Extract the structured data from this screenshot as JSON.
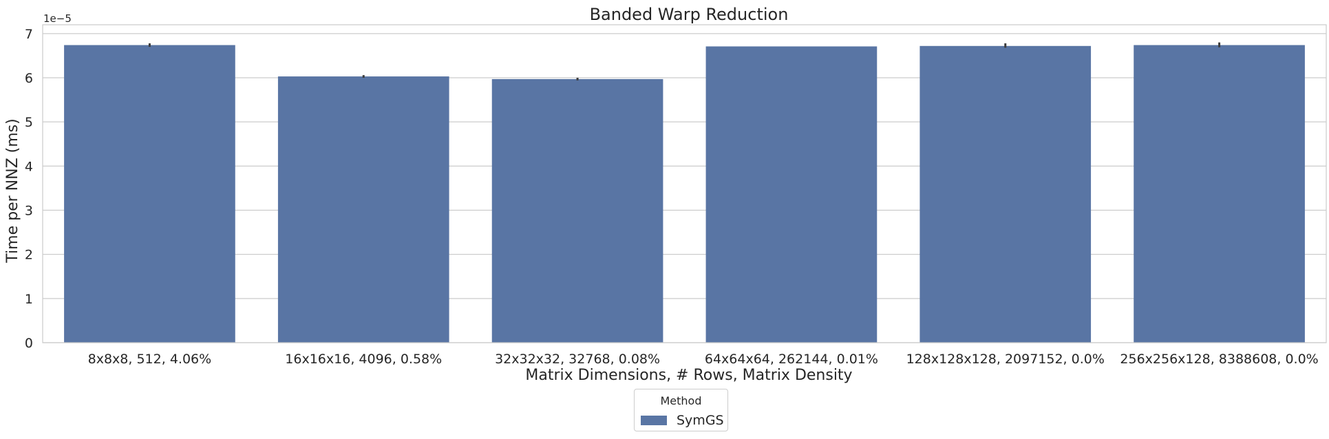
{
  "chart_data": {
    "type": "bar",
    "title": "Banded Warp Reduction",
    "xlabel": "Matrix Dimensions, # Rows, Matrix Density",
    "ylabel": "Time per NNZ (ms)",
    "y_offset_label": "1e−5",
    "categories": [
      "8x8x8, 512, 4.06%",
      "16x16x16, 4096, 0.58%",
      "32x32x32, 32768, 0.08%",
      "64x64x64, 262144, 0.01%",
      "128x128x128, 2097152, 0.0%",
      "256x256x128, 8388608, 0.0%"
    ],
    "series": [
      {
        "name": "SymGS",
        "color": "#5975a4",
        "values": [
          6.74,
          6.03,
          5.97,
          6.71,
          6.72,
          6.74
        ],
        "error_low": [
          6.7,
          6.0,
          5.94,
          6.71,
          6.68,
          6.69
        ],
        "error_high": [
          6.78,
          6.06,
          6.0,
          6.71,
          6.78,
          6.8
        ]
      }
    ],
    "ylim": [
      0,
      7.2
    ],
    "yticks": [
      0,
      1,
      2,
      3,
      4,
      5,
      6,
      7
    ],
    "y_unit_scale": "1e-5",
    "grid": true,
    "legend": {
      "title": "Method",
      "placement": "bottom-center, below axis"
    }
  }
}
